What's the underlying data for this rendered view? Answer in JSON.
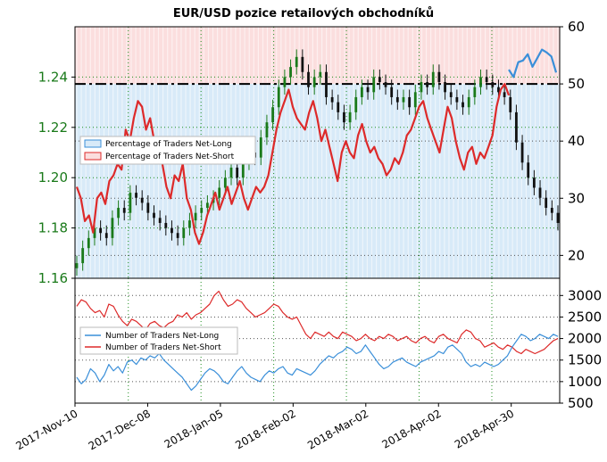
{
  "colors": {
    "price_tick": "#1a7a1a",
    "long": "#3a8fd9",
    "short": "#dd2a2a",
    "long_fill": "#d8eaf8",
    "short_fill": "#fbdede",
    "candle_up": "#1a7a1a",
    "candle_down": "#111111",
    "grid": "#1f8f1f"
  },
  "chart_data": [
    {
      "type": "line",
      "title": "EUR/USD pozice retailových obchodníků",
      "x_ticks": [
        "2017-Nov-10",
        "2017-Dec-08",
        "2018-Jan-05",
        "2018-Feb-02",
        "2018-Mar-02",
        "2018-Apr-02",
        "2018-Apr-30"
      ],
      "left_axis": {
        "ylim": [
          1.16,
          1.26
        ],
        "ticks": [
          "1.16",
          "1.18",
          "1.20",
          "1.22",
          "1.24"
        ]
      },
      "right_axis": {
        "ylim": [
          16,
          60
        ],
        "ticks": [
          "20",
          "30",
          "40",
          "50",
          "60"
        ]
      },
      "reference_line": 50,
      "legend": [
        "Percentage of Traders Net-Long",
        "Percentage of Traders Net-Short"
      ],
      "legend_position": "center-left",
      "grid": true,
      "price_close": [
        1.166,
        1.172,
        1.176,
        1.18,
        1.178,
        1.176,
        1.184,
        1.188,
        1.186,
        1.194,
        1.192,
        1.19,
        1.186,
        1.184,
        1.182,
        1.18,
        1.178,
        1.176,
        1.18,
        1.183,
        1.186,
        1.188,
        1.19,
        1.192,
        1.196,
        1.2,
        1.204,
        1.2,
        1.206,
        1.21,
        1.208,
        1.216,
        1.222,
        1.228,
        1.236,
        1.24,
        1.244,
        1.248,
        1.242,
        1.236,
        1.24,
        1.242,
        1.232,
        1.23,
        1.226,
        1.222,
        1.226,
        1.232,
        1.236,
        1.234,
        1.24,
        1.238,
        1.236,
        1.232,
        1.23,
        1.232,
        1.228,
        1.234,
        1.238,
        1.236,
        1.242,
        1.238,
        1.234,
        1.232,
        1.23,
        1.228,
        1.232,
        1.236,
        1.24,
        1.238,
        1.236,
        1.234,
        1.232,
        1.226,
        1.214,
        1.206,
        1.2,
        1.196,
        1.192,
        1.188,
        1.186,
        1.182
      ],
      "series": [
        {
          "name": "Percentage of Traders Net-Long",
          "values": [
            52.5,
            51.2,
            53.8,
            54.1,
            55.2,
            53.0,
            54.5,
            56.0,
            55.5,
            54.8,
            52.0
          ]
        },
        {
          "name": "Percentage of Traders Net-Short",
          "values": [
            32,
            30,
            26,
            27,
            24,
            30,
            31,
            29,
            33,
            34,
            36,
            35,
            42,
            40,
            44,
            47,
            46,
            42,
            44,
            40,
            38,
            36,
            32,
            30,
            34,
            33,
            36,
            30,
            28,
            24,
            22,
            24,
            27,
            29,
            31,
            28,
            30,
            32,
            29,
            31,
            33,
            30,
            28,
            30,
            32,
            31,
            32,
            34,
            38,
            42,
            45,
            47,
            49,
            46,
            44,
            43,
            42,
            45,
            47,
            44,
            40,
            42,
            39,
            36,
            33,
            38,
            40,
            38,
            37,
            41,
            43,
            40,
            38,
            39,
            37,
            36,
            34,
            35,
            37,
            36,
            38,
            41,
            42,
            44,
            46,
            47,
            44,
            42,
            40,
            38,
            42,
            46,
            44,
            40,
            37,
            35,
            38,
            39,
            36,
            38,
            37,
            39,
            41,
            46,
            49,
            50,
            48
          ]
        }
      ]
    },
    {
      "type": "line",
      "right_axis": {
        "ylim": [
          500,
          3400
        ],
        "ticks": [
          "500",
          "1000",
          "1500",
          "2000",
          "2500",
          "3000"
        ]
      },
      "legend": [
        "Number of Traders Net-Long",
        "Number of Traders Net-Short"
      ],
      "legend_position": "center-left",
      "grid": true,
      "series": [
        {
          "name": "Number of Traders Net-Long",
          "values": [
            1100,
            950,
            1050,
            1300,
            1200,
            1000,
            1150,
            1400,
            1250,
            1350,
            1200,
            1450,
            1500,
            1400,
            1550,
            1500,
            1600,
            1550,
            1650,
            1500,
            1400,
            1300,
            1200,
            1100,
            950,
            800,
            900,
            1050,
            1200,
            1300,
            1250,
            1150,
            1000,
            950,
            1100,
            1250,
            1350,
            1200,
            1100,
            1050,
            1000,
            1150,
            1250,
            1200,
            1300,
            1350,
            1200,
            1150,
            1300,
            1250,
            1200,
            1150,
            1250,
            1400,
            1500,
            1600,
            1550,
            1650,
            1700,
            1800,
            1750,
            1650,
            1700,
            1850,
            1700,
            1550,
            1400,
            1300,
            1350,
            1450,
            1500,
            1550,
            1450,
            1400,
            1350,
            1450,
            1500,
            1550,
            1600,
            1700,
            1650,
            1800,
            1850,
            1750,
            1650,
            1450,
            1350,
            1400,
            1350,
            1450,
            1400,
            1350,
            1400,
            1500,
            1600,
            1800,
            1950,
            2100,
            2050,
            1950,
            2000,
            2100,
            2050,
            2000,
            2100,
            2050
          ]
        },
        {
          "name": "Number of Traders Net-Short",
          "values": [
            2750,
            2900,
            2850,
            2700,
            2600,
            2650,
            2500,
            2800,
            2750,
            2550,
            2400,
            2300,
            2450,
            2400,
            2300,
            2200,
            2350,
            2400,
            2300,
            2250,
            2350,
            2400,
            2550,
            2500,
            2600,
            2450,
            2550,
            2600,
            2700,
            2800,
            3000,
            3100,
            2900,
            2750,
            2800,
            2900,
            2850,
            2700,
            2600,
            2500,
            2550,
            2600,
            2700,
            2800,
            2750,
            2600,
            2500,
            2450,
            2500,
            2300,
            2100,
            2000,
            2150,
            2100,
            2050,
            2150,
            2050,
            2000,
            2150,
            2100,
            2050,
            1950,
            2000,
            2100,
            2000,
            1950,
            2050,
            2000,
            2100,
            2050,
            1950,
            2000,
            2050,
            1950,
            1900,
            2000,
            2050,
            1950,
            1900,
            2050,
            2100,
            2000,
            1950,
            1900,
            2100,
            2200,
            2150,
            2000,
            1950,
            1800,
            1850,
            1900,
            1800,
            1750,
            1850,
            1800,
            1700,
            1650,
            1750,
            1700,
            1650,
            1700,
            1750,
            1850,
            1950,
            2000
          ]
        }
      ]
    }
  ]
}
